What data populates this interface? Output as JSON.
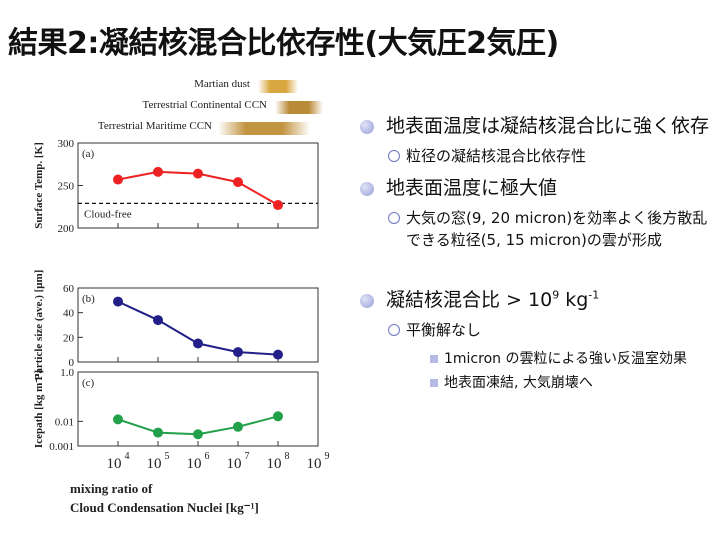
{
  "title": "結果2:凝結核混合比依存性(大気圧2気圧)",
  "legend": [
    {
      "label": "Martian dust",
      "color": "#d9a740"
    },
    {
      "label": "Terrestrial Continental CCN",
      "color": "#b98a38"
    },
    {
      "label": "Terrestrial Maritime CCN",
      "color": "#c19440"
    }
  ],
  "chart_data": [
    {
      "panel": "(a)",
      "type": "line",
      "ylabel": "Surface Temp. [K]",
      "ylim": [
        200,
        300
      ],
      "yticks": [
        "300",
        "250",
        "200"
      ],
      "x_log10": [
        4,
        5,
        6,
        7,
        8
      ],
      "values": [
        257,
        266,
        264,
        254,
        227
      ],
      "color": "#ee2222",
      "reference": {
        "label": "Cloud-free",
        "value": 229
      }
    },
    {
      "panel": "(b)",
      "type": "line",
      "ylabel": "Particle size (ave.) [μm]",
      "ylim": [
        0,
        60
      ],
      "yticks": [
        "60",
        "40",
        "20",
        "0"
      ],
      "x_log10": [
        4,
        5,
        6,
        7,
        8
      ],
      "values": [
        49,
        34,
        15,
        8,
        6
      ],
      "color": "#222088"
    },
    {
      "panel": "(c)",
      "type": "line",
      "ylabel": "Icepath [kg m⁻²]",
      "yscale": "log",
      "ylim": [
        0.001,
        1.0
      ],
      "yticks": [
        "1.0",
        "0.01",
        "0.001"
      ],
      "x_log10": [
        4,
        5,
        6,
        7,
        8
      ],
      "values": [
        0.012,
        0.0035,
        0.003,
        0.006,
        0.016
      ],
      "color": "#22a14a"
    }
  ],
  "xaxis": {
    "ticks": [
      {
        "base": "10",
        "exp": "4"
      },
      {
        "base": "10",
        "exp": "5"
      },
      {
        "base": "10",
        "exp": "6"
      },
      {
        "base": "10",
        "exp": "7"
      },
      {
        "base": "10",
        "exp": "8"
      },
      {
        "base": "10",
        "exp": "9"
      }
    ],
    "label_line1": "mixing ratio of",
    "label_line2": "Cloud Condensation Nuclei [kg⁻¹]"
  },
  "bullets": {
    "b1": "地表面温度は凝結核混合比に強く依存",
    "b1_sub": "粒径の凝結核混合比依存性",
    "b2": "地表面温度に極大値",
    "b2_sub": "大気の窓(9, 20 micron)を効率よく後方散乱できる粒径(5, 15 micron)の雲が形成",
    "b3_pre": "凝結核混合比 > 10",
    "b3_exp1": "9",
    "b3_mid": " kg",
    "b3_exp2": "-1",
    "b3_sub": "平衡解なし",
    "b3_subsub1": "1micron の雲粒による強い反温室効果",
    "b3_subsub2": "地表面凍結, 大気崩壊へ"
  }
}
